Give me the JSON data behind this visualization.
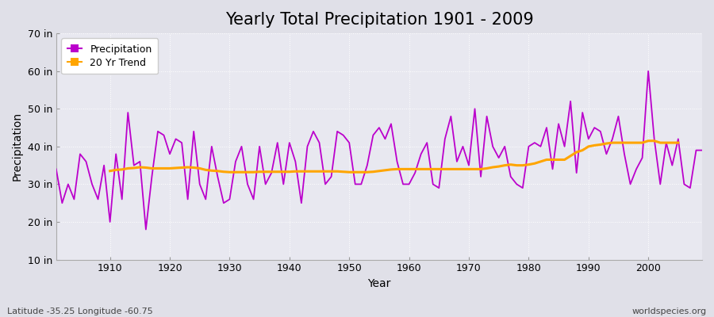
{
  "title": "Yearly Total Precipitation 1901 - 2009",
  "xlabel": "Year",
  "ylabel": "Precipitation",
  "subtitle": "Latitude -35.25 Longitude -60.75",
  "watermark": "worldspecies.org",
  "fig_bg_color": "#e0e0e8",
  "plot_bg_color": "#e8e8f0",
  "precip_color": "#bb00cc",
  "trend_color": "#ffa500",
  "ylim": [
    10,
    70
  ],
  "yticks": [
    10,
    20,
    30,
    40,
    50,
    60,
    70
  ],
  "ytick_labels": [
    "10 in",
    "20 in",
    "30 in",
    "40 in",
    "50 in",
    "60 in",
    "70 in"
  ],
  "xlim": [
    1901,
    2009
  ],
  "xtick_positions": [
    1910,
    1920,
    1930,
    1940,
    1950,
    1960,
    1970,
    1980,
    1990,
    2000
  ],
  "years": [
    1901,
    1902,
    1903,
    1904,
    1905,
    1906,
    1907,
    1908,
    1909,
    1910,
    1911,
    1912,
    1913,
    1914,
    1915,
    1916,
    1917,
    1918,
    1919,
    1920,
    1921,
    1922,
    1923,
    1924,
    1925,
    1926,
    1927,
    1928,
    1929,
    1930,
    1931,
    1932,
    1933,
    1934,
    1935,
    1936,
    1937,
    1938,
    1939,
    1940,
    1941,
    1942,
    1943,
    1944,
    1945,
    1946,
    1947,
    1948,
    1949,
    1950,
    1951,
    1952,
    1953,
    1954,
    1955,
    1956,
    1957,
    1958,
    1959,
    1960,
    1961,
    1962,
    1963,
    1964,
    1965,
    1966,
    1967,
    1968,
    1969,
    1970,
    1971,
    1972,
    1973,
    1974,
    1975,
    1976,
    1977,
    1978,
    1979,
    1980,
    1981,
    1982,
    1983,
    1984,
    1985,
    1986,
    1987,
    1988,
    1989,
    1990,
    1991,
    1992,
    1993,
    1994,
    1995,
    1996,
    1997,
    1998,
    1999,
    2000,
    2001,
    2002,
    2003,
    2004,
    2005,
    2006,
    2007,
    2008,
    2009
  ],
  "precip": [
    34,
    25,
    30,
    26,
    38,
    36,
    30,
    26,
    35,
    20,
    38,
    26,
    49,
    35,
    36,
    18,
    32,
    44,
    43,
    38,
    42,
    41,
    26,
    44,
    30,
    26,
    40,
    32,
    25,
    26,
    36,
    40,
    30,
    26,
    40,
    30,
    33,
    41,
    30,
    41,
    36,
    25,
    40,
    44,
    41,
    30,
    32,
    44,
    43,
    41,
    30,
    30,
    35,
    43,
    45,
    42,
    46,
    36,
    30,
    30,
    33,
    38,
    41,
    30,
    29,
    42,
    48,
    36,
    40,
    35,
    50,
    32,
    48,
    40,
    37,
    40,
    32,
    30,
    29,
    40,
    41,
    40,
    45,
    34,
    46,
    40,
    52,
    33,
    49,
    42,
    45,
    44,
    38,
    42,
    48,
    38,
    30,
    34,
    37,
    60,
    42,
    30,
    41,
    35,
    42,
    30,
    29,
    39,
    39
  ],
  "trend_years": [
    1910,
    1911,
    1912,
    1913,
    1914,
    1915,
    1916,
    1917,
    1918,
    1919,
    1920,
    1921,
    1922,
    1923,
    1924,
    1925,
    1926,
    1927,
    1928,
    1929,
    1930,
    1931,
    1932,
    1933,
    1934,
    1935,
    1936,
    1937,
    1938,
    1939,
    1940,
    1941,
    1942,
    1943,
    1944,
    1945,
    1946,
    1947,
    1948,
    1949,
    1950,
    1951,
    1952,
    1953,
    1954,
    1955,
    1956,
    1957,
    1958,
    1959,
    1960,
    1961,
    1962,
    1963,
    1964,
    1965,
    1966,
    1967,
    1968,
    1969,
    1970,
    1971,
    1972,
    1973,
    1974,
    1975,
    1976,
    1977,
    1978,
    1979,
    1980,
    1981,
    1982,
    1983,
    1984,
    1985,
    1986,
    1987,
    1988,
    1989,
    1990,
    1991,
    1992,
    1993,
    1994,
    1995,
    1996,
    1997,
    1998,
    1999,
    2000,
    2001,
    2002,
    2003,
    2004,
    2005
  ],
  "trend": [
    33.5,
    33.8,
    33.9,
    34.2,
    34.3,
    34.5,
    34.4,
    34.2,
    34.2,
    34.2,
    34.2,
    34.3,
    34.4,
    34.5,
    34.4,
    34.2,
    33.8,
    33.6,
    33.5,
    33.3,
    33.2,
    33.2,
    33.2,
    33.2,
    33.2,
    33.3,
    33.3,
    33.3,
    33.3,
    33.3,
    33.3,
    33.4,
    33.4,
    33.4,
    33.4,
    33.4,
    33.4,
    33.4,
    33.4,
    33.3,
    33.2,
    33.2,
    33.2,
    33.2,
    33.3,
    33.5,
    33.7,
    33.9,
    34.0,
    34.0,
    34.0,
    34.0,
    34.0,
    34.0,
    34.0,
    34.0,
    34.0,
    34.0,
    34.0,
    34.0,
    34.0,
    34.0,
    34.0,
    34.2,
    34.5,
    34.7,
    35.0,
    35.2,
    35.0,
    35.0,
    35.2,
    35.5,
    36.0,
    36.5,
    36.5,
    36.5,
    36.5,
    37.5,
    38.5,
    39.0,
    40.0,
    40.3,
    40.5,
    40.8,
    41.0,
    41.0,
    41.0,
    41.0,
    41.0,
    41.0,
    41.5,
    41.5,
    41.0,
    41.0,
    41.0,
    41.0
  ],
  "title_fontsize": 15,
  "label_fontsize": 10,
  "tick_fontsize": 9,
  "legend_fontsize": 9
}
